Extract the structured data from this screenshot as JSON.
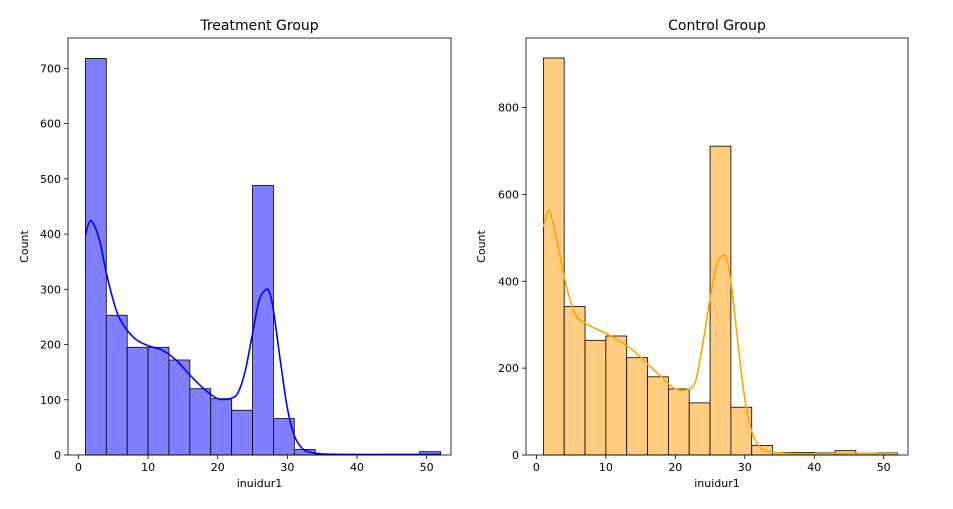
{
  "chart_data": [
    {
      "type": "bar",
      "subtype": "histogram-with-kde",
      "title": "Treatment Group",
      "xlabel": "inuidur1",
      "ylabel": "Count",
      "xlim": [
        -1.5,
        53.5
      ],
      "ylim": [
        0,
        755
      ],
      "xticks": [
        0,
        10,
        20,
        30,
        40,
        50
      ],
      "yticks": [
        0,
        100,
        200,
        300,
        400,
        500,
        600,
        700
      ],
      "bin_edges": [
        1,
        4,
        7,
        10,
        13,
        16,
        19,
        22,
        25,
        28,
        31,
        34,
        37,
        40,
        43,
        46,
        49,
        52
      ],
      "values": [
        718,
        253,
        195,
        195,
        172,
        120,
        102,
        81,
        488,
        66,
        10,
        2,
        1,
        1,
        1,
        1,
        6
      ],
      "bar_color": "#7f7fff",
      "edge_color": "#000000",
      "kde": {
        "color": "#0000ff",
        "x": [
          1,
          1.5,
          2,
          3,
          4,
          5,
          6,
          8,
          10,
          12,
          14,
          16,
          18,
          20,
          22,
          23,
          24,
          25,
          26,
          27,
          27.5,
          28,
          29,
          30,
          31,
          32,
          33,
          35,
          40,
          45,
          52
        ],
        "y": [
          398,
          420,
          422,
          390,
          330,
          280,
          245,
          212,
          198,
          190,
          172,
          145,
          120,
          102,
          103,
          115,
          155,
          220,
          282,
          300,
          292,
          262,
          170,
          85,
          35,
          14,
          6,
          2,
          1,
          1,
          1
        ]
      },
      "grid": false
    },
    {
      "type": "bar",
      "subtype": "histogram-with-kde",
      "title": "Control Group",
      "xlabel": "inuidur1",
      "ylabel": "Count",
      "xlim": [
        -1.5,
        53.5
      ],
      "ylim": [
        0,
        960
      ],
      "xticks": [
        0,
        10,
        20,
        30,
        40,
        50
      ],
      "yticks": [
        0,
        200,
        400,
        600,
        800
      ],
      "bin_edges": [
        1,
        4,
        7,
        10,
        13,
        16,
        19,
        22,
        25,
        28,
        31,
        34,
        37,
        40,
        43,
        46,
        49,
        52
      ],
      "values": [
        914,
        342,
        264,
        274,
        224,
        180,
        152,
        120,
        711,
        110,
        22,
        6,
        6,
        5,
        10,
        4,
        5
      ],
      "bar_color": "#ffcc80",
      "edge_color": "#000000",
      "kde": {
        "color": "#ffa500",
        "x": [
          1,
          1.5,
          2,
          3,
          4,
          5,
          6,
          8,
          10,
          12,
          14,
          16,
          18,
          20,
          22,
          23,
          24,
          25,
          26,
          27,
          27.5,
          28,
          29,
          30,
          31,
          32,
          33,
          35,
          40,
          45,
          52
        ],
        "y": [
          525,
          555,
          558,
          490,
          410,
          350,
          315,
          295,
          280,
          262,
          240,
          210,
          180,
          152,
          152,
          175,
          260,
          360,
          440,
          460,
          445,
          400,
          260,
          130,
          55,
          22,
          10,
          5,
          3,
          4,
          3
        ]
      },
      "grid": false
    }
  ]
}
